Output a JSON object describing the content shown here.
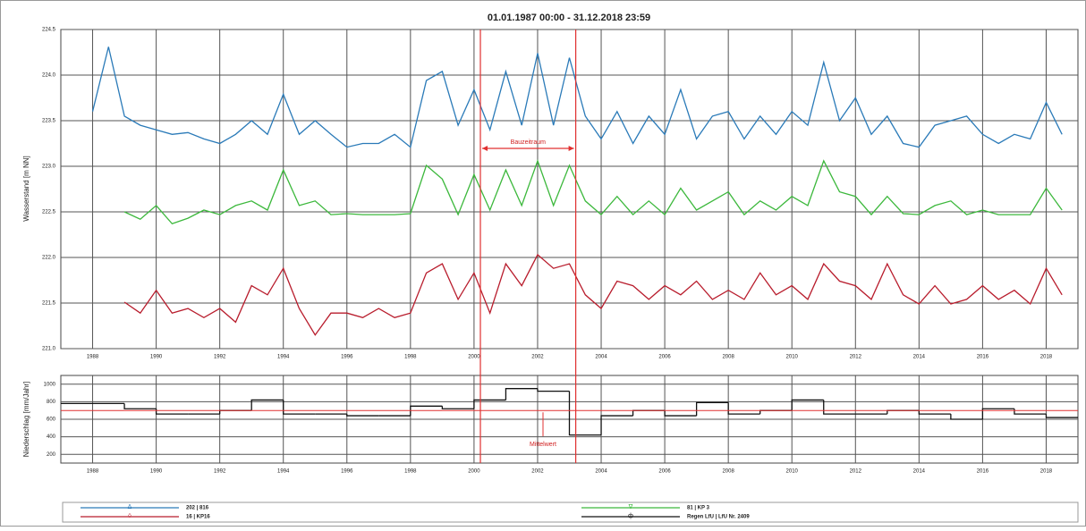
{
  "chart_data": [
    {
      "type": "line",
      "title": "01.01.1987 00:00 - 31.12.2018 23:59",
      "y_label": "Wasserstand [m NN]",
      "annotation": "Bauzeitraum",
      "vlines": [
        2000.2,
        2003.2
      ],
      "vline_color": "#e03030",
      "xlim": [
        1987,
        2019
      ],
      "xticks": [
        1988,
        1990,
        1992,
        1994,
        1996,
        1998,
        2000,
        2002,
        2004,
        2006,
        2008,
        2010,
        2012,
        2014,
        2016,
        2018
      ],
      "ylim": [
        221,
        224.5
      ],
      "yticks": [
        {
          "value": 221,
          "label": "221.0"
        },
        221.5,
        {
          "value": 222,
          "label": "222.0"
        },
        222.5,
        {
          "value": 223,
          "label": "223.0"
        },
        223.5,
        {
          "value": 224,
          "label": "224.0"
        },
        224.5
      ],
      "grid": true,
      "x": [
        1988,
        1988.5,
        1989,
        1989.5,
        1990,
        1990.5,
        1991,
        1991.5,
        1992,
        1992.5,
        1993,
        1993.5,
        1994,
        1994.5,
        1995,
        1995.5,
        1996,
        1996.5,
        1997,
        1997.5,
        1998,
        1998.5,
        1999,
        1999.5,
        2000,
        2000.5,
        2001,
        2001.5,
        2002,
        2002.5,
        2003,
        2003.5,
        2004,
        2004.5,
        2005,
        2005.5,
        2006,
        2006.5,
        2007,
        2007.5,
        2008,
        2008.5,
        2009,
        2009.5,
        2010,
        2010.5,
        2011,
        2011.5,
        2012,
        2012.5,
        2013,
        2013.5,
        2014,
        2014.5,
        2015,
        2015.5,
        2016,
        2016.5,
        2017,
        2017.5,
        2018,
        2018.5
      ],
      "series": [
        {
          "name": "202 | 816",
          "symbol": "Δ",
          "color": "#2a7ab8",
          "values": [
            223.6,
            224.31,
            223.55,
            223.45,
            223.4,
            223.35,
            223.37,
            223.3,
            223.25,
            223.35,
            223.5,
            223.35,
            223.79,
            223.35,
            223.5,
            223.35,
            223.21,
            223.25,
            223.25,
            223.35,
            223.21,
            223.94,
            224.04,
            223.45,
            223.84,
            223.4,
            224.04,
            223.45,
            224.24,
            223.45,
            224.19,
            223.55,
            223.3,
            223.6,
            223.25,
            223.55,
            223.35,
            223.84,
            223.3,
            223.55,
            223.6,
            223.3,
            223.55,
            223.35,
            223.6,
            223.45,
            224.14,
            223.5,
            223.75,
            223.35,
            223.55,
            223.25,
            223.21,
            223.45,
            223.5,
            223.55,
            223.35,
            223.25,
            223.35,
            223.3,
            223.7,
            223.35
          ]
        },
        {
          "name": "81 | KP 3",
          "symbol": "∇",
          "color": "#3cb83c",
          "values": [
            null,
            null,
            222.5,
            222.42,
            222.57,
            222.37,
            222.43,
            222.52,
            222.47,
            222.57,
            222.62,
            222.52,
            222.96,
            222.57,
            222.62,
            222.47,
            222.48,
            222.47,
            222.47,
            222.47,
            222.48,
            223.01,
            222.86,
            222.47,
            222.91,
            222.52,
            222.96,
            222.57,
            223.06,
            222.57,
            223.01,
            222.62,
            222.47,
            222.67,
            222.47,
            222.62,
            222.47,
            222.76,
            222.52,
            222.62,
            222.72,
            222.47,
            222.62,
            222.52,
            222.67,
            222.57,
            223.06,
            222.72,
            222.67,
            222.47,
            222.67,
            222.48,
            222.47,
            222.57,
            222.62,
            222.47,
            222.52,
            222.47,
            222.47,
            222.47,
            222.76,
            222.52
          ]
        },
        {
          "name": "16 | KP16",
          "symbol": "◊",
          "color": "#b81c2c",
          "values": [
            null,
            null,
            221.51,
            221.39,
            221.64,
            221.39,
            221.44,
            221.34,
            221.44,
            221.29,
            221.69,
            221.59,
            221.88,
            221.44,
            221.15,
            221.39,
            221.39,
            221.34,
            221.44,
            221.34,
            221.39,
            221.83,
            221.93,
            221.54,
            221.83,
            221.39,
            221.93,
            221.69,
            222.03,
            221.88,
            221.93,
            221.59,
            221.44,
            221.74,
            221.69,
            221.54,
            221.69,
            221.59,
            221.74,
            221.54,
            221.64,
            221.54,
            221.83,
            221.59,
            221.69,
            221.54,
            221.93,
            221.74,
            221.69,
            221.54,
            221.93,
            221.59,
            221.49,
            221.69,
            221.49,
            221.54,
            221.69,
            221.54,
            221.64,
            221.49,
            221.88,
            221.59
          ]
        }
      ]
    },
    {
      "type": "step",
      "y_label": "Niederschlag [mm/Jahr]",
      "annotation": "Mittelwert",
      "mean": 700,
      "mean_color": "#e03030",
      "xlim": [
        1987,
        2019
      ],
      "xticks": [
        1988,
        1990,
        1992,
        1994,
        1996,
        1998,
        2000,
        2002,
        2004,
        2006,
        2008,
        2010,
        2012,
        2014,
        2016,
        2018
      ],
      "ylim": [
        100,
        1100
      ],
      "yticks": [
        200,
        400,
        600,
        800,
        1000
      ],
      "grid": true,
      "x": [
        1987,
        1988,
        1989,
        1990,
        1991,
        1992,
        1993,
        1994,
        1995,
        1996,
        1997,
        1998,
        1999,
        2000,
        2001,
        2002,
        2003,
        2004,
        2005,
        2006,
        2007,
        2008,
        2009,
        2010,
        2011,
        2012,
        2013,
        2014,
        2015,
        2016,
        2017,
        2018
      ],
      "series": [
        {
          "name": "Regen LfU | LfU Nr. 2409",
          "symbol": "ф",
          "color": "#111111",
          "values": [
            780,
            780,
            720,
            660,
            660,
            700,
            820,
            660,
            660,
            640,
            640,
            750,
            720,
            820,
            950,
            920,
            420,
            640,
            700,
            640,
            790,
            660,
            700,
            820,
            660,
            660,
            700,
            660,
            600,
            720,
            660,
            620
          ]
        }
      ]
    }
  ]
}
